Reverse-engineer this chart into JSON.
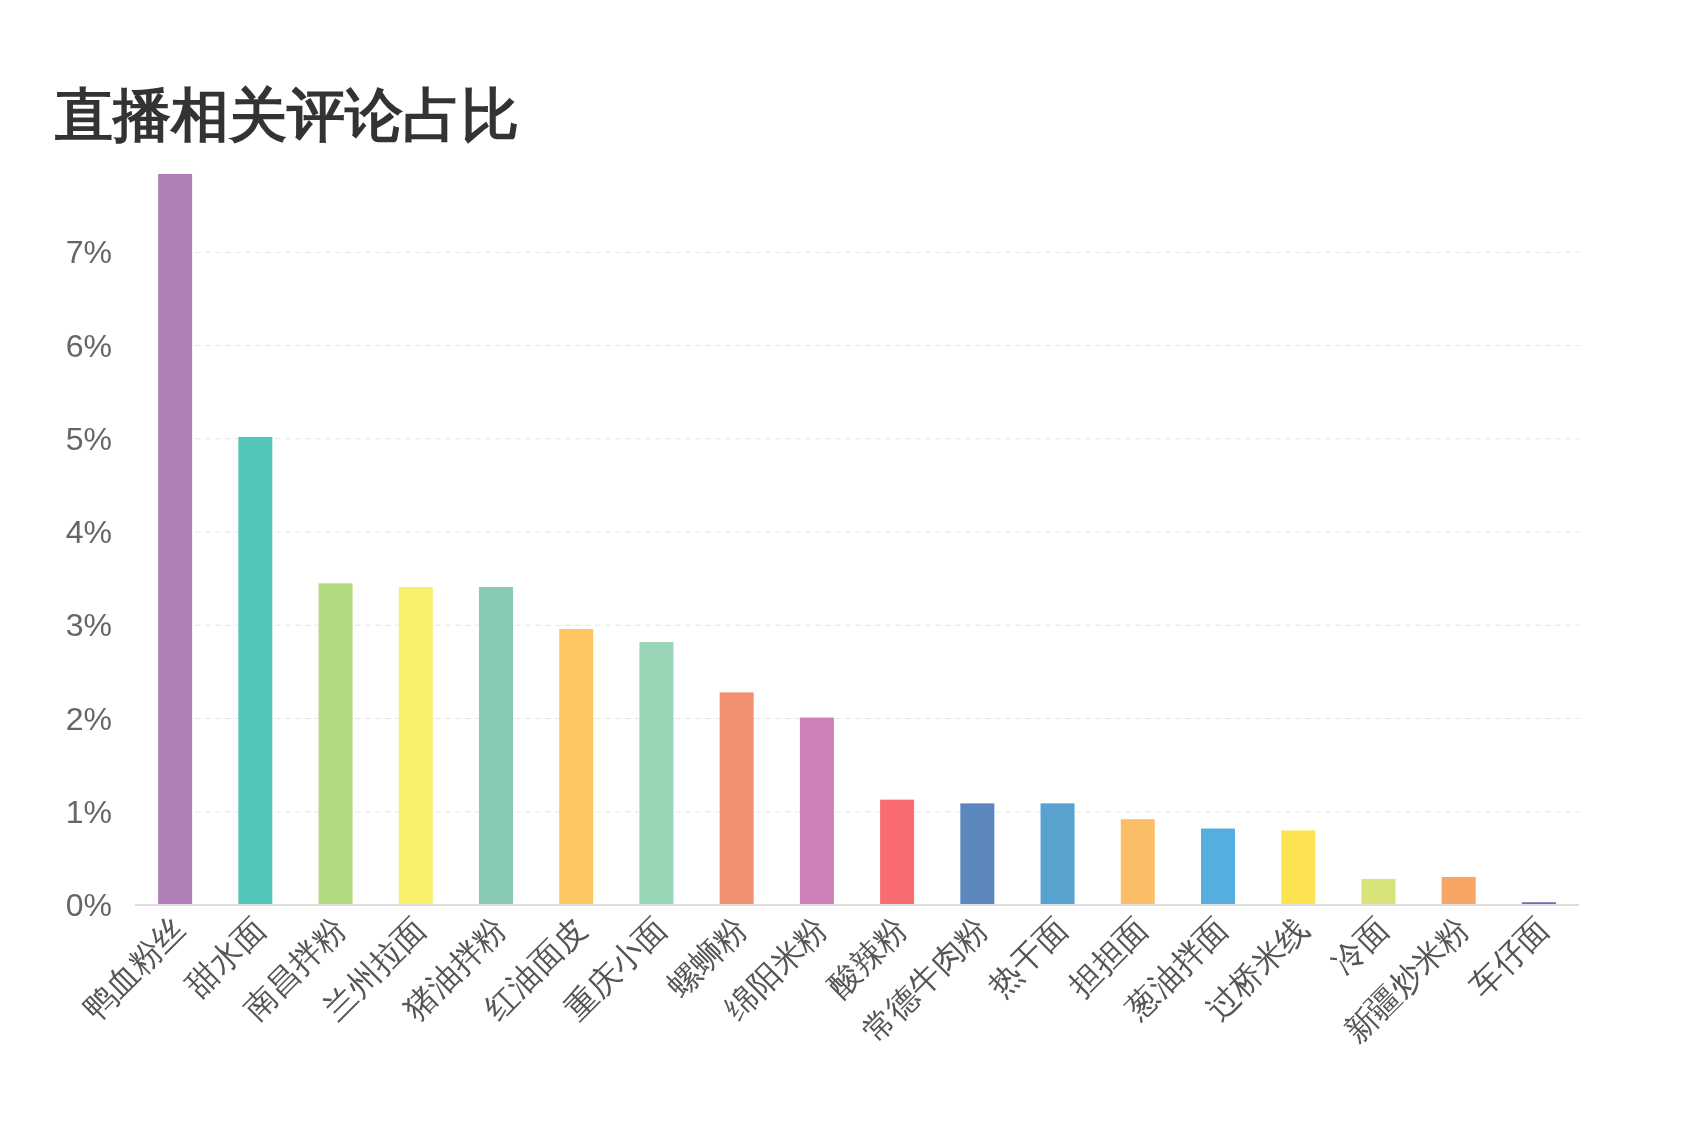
{
  "chart_data": {
    "type": "bar",
    "title": "直播相关评论占比",
    "categories": [
      "鸭血粉丝",
      "甜水面",
      "南昌拌粉",
      "兰州拉面",
      "猪油拌粉",
      "红油面皮",
      "重庆小面",
      "螺蛳粉",
      "绵阳米粉",
      "酸辣粉",
      "常德牛肉粉",
      "热干面",
      "担担面",
      "葱油拌面",
      "过桥米线",
      "冷面",
      "新疆炒米粉",
      "车仔面"
    ],
    "values": [
      7.84,
      5.02,
      3.45,
      3.41,
      3.41,
      2.96,
      2.82,
      2.28,
      2.01,
      1.13,
      1.09,
      1.09,
      0.92,
      0.82,
      0.8,
      0.28,
      0.3,
      0.03
    ],
    "colors": [
      "#b07fb8",
      "#52c6b9",
      "#b1d97f",
      "#f8ef6c",
      "#88c9b4",
      "#fdc661",
      "#98d5b4",
      "#f28f70",
      "#cb80b8",
      "#f86b6e",
      "#5b87bd",
      "#58a2d0",
      "#fbbe66",
      "#56addf",
      "#fde352",
      "#d8e47a",
      "#f6a564",
      "#6b6fb8"
    ],
    "ylim": [
      0,
      7.84
    ],
    "yticks": [
      {
        "value": 0,
        "label": "0%"
      },
      {
        "value": 1,
        "label": "1%"
      },
      {
        "value": 2,
        "label": "2%"
      },
      {
        "value": 3,
        "label": "3%"
      },
      {
        "value": 4,
        "label": "4%"
      },
      {
        "value": 5,
        "label": "5%"
      },
      {
        "value": 6,
        "label": "6%"
      },
      {
        "value": 7,
        "label": "7%"
      }
    ],
    "grid": "y"
  }
}
